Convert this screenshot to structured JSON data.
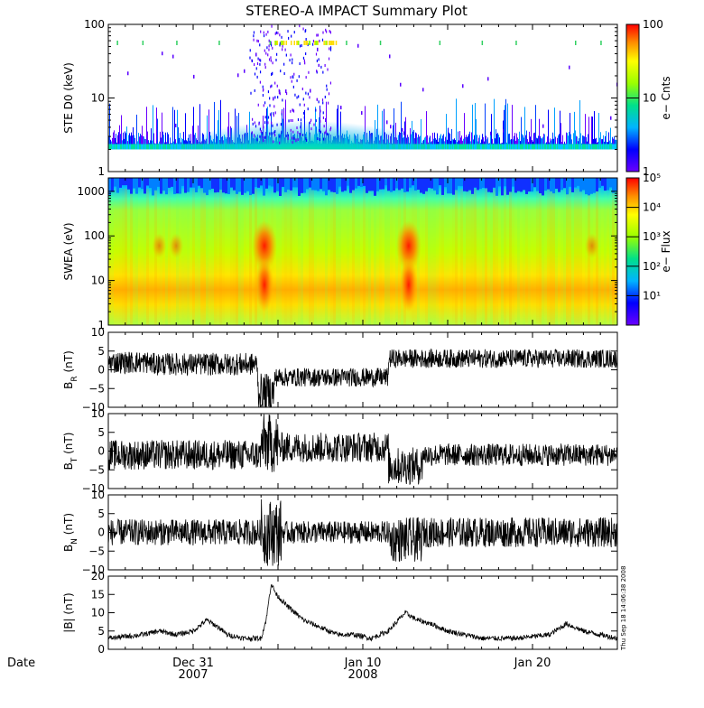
{
  "title": "STEREO-A IMPACT Summary Plot",
  "timestamp": "Thu Sep 18 14:06:38 2008",
  "date_label": "Date",
  "x_axis": {
    "start": "2007-12-26",
    "end": "2008-01-25",
    "ticks": [
      {
        "top": "Dec 31",
        "bottom": "2007",
        "day": 5
      },
      {
        "top": "Jan 10",
        "bottom": "2008",
        "day": 15
      },
      {
        "top": "Jan 20",
        "bottom": "",
        "day": 25
      }
    ]
  },
  "chart_data": [
    {
      "type": "heatmap",
      "name": "ste",
      "ylabel": "STE D0 (keV)",
      "yscale": "log",
      "ylim": [
        1,
        100
      ],
      "yticks": [
        "1",
        "10",
        "100"
      ],
      "colorbar": {
        "label": "e− Cnts",
        "ticks": [
          "1",
          "10",
          "100"
        ],
        "range": [
          1,
          100
        ]
      },
      "description_values": {
        "background_level": 2,
        "peak_day": 11.5,
        "peak_counts": 100
      }
    },
    {
      "type": "heatmap",
      "name": "swea",
      "ylabel": "SWEA (eV)",
      "yscale": "log",
      "ylim": [
        1,
        2000
      ],
      "yticks": [
        "1",
        "10",
        "100",
        "1000"
      ],
      "colorbar": {
        "label": "e− Flux",
        "ticks": [
          "10¹",
          "10²",
          "10³",
          "10⁴",
          "10⁵"
        ],
        "range": [
          1,
          100000
        ]
      },
      "description_values": {
        "enhancement_days": [
          9.2,
          17.7
        ],
        "core_energy_ev": 8
      }
    },
    {
      "type": "line",
      "name": "br",
      "ylabel": "B_R (nT)",
      "ylim": [
        -10,
        10
      ],
      "yticks": [
        "10",
        "5",
        "0",
        "−5",
        "−10"
      ],
      "segments": [
        {
          "from": 0,
          "to": 2.5,
          "mean": 2,
          "amp": 3
        },
        {
          "from": 2.5,
          "to": 8.8,
          "mean": 1.5,
          "amp": 3
        },
        {
          "from": 8.8,
          "to": 9.8,
          "mean": -6,
          "amp": 5
        },
        {
          "from": 9.8,
          "to": 16.5,
          "mean": -2,
          "amp": 2.5
        },
        {
          "from": 16.5,
          "to": 30,
          "mean": 3,
          "amp": 2.5
        }
      ]
    },
    {
      "type": "line",
      "name": "bt",
      "ylabel": "B_T (nT)",
      "ylim": [
        -10,
        10
      ],
      "yticks": [
        "10",
        "5",
        "0",
        "−5",
        "−10"
      ],
      "segments": [
        {
          "from": 0,
          "to": 9,
          "mean": -1,
          "amp": 4
        },
        {
          "from": 9,
          "to": 10,
          "mean": 2,
          "amp": 8
        },
        {
          "from": 10,
          "to": 16.5,
          "mean": 1,
          "amp": 4
        },
        {
          "from": 16.5,
          "to": 18.5,
          "mean": -4,
          "amp": 5
        },
        {
          "from": 18.5,
          "to": 30,
          "mean": -1,
          "amp": 3
        }
      ]
    },
    {
      "type": "line",
      "name": "bn",
      "ylabel": "B_N (nT)",
      "ylim": [
        -10,
        10
      ],
      "yticks": [
        "10",
        "5",
        "0",
        "−5",
        "−10"
      ],
      "segments": [
        {
          "from": 0,
          "to": 9,
          "mean": 0,
          "amp": 3.5
        },
        {
          "from": 9,
          "to": 10.2,
          "mean": 0,
          "amp": 9
        },
        {
          "from": 10.2,
          "to": 16.5,
          "mean": 0,
          "amp": 3
        },
        {
          "from": 16.5,
          "to": 18.5,
          "mean": -2,
          "amp": 6
        },
        {
          "from": 18.5,
          "to": 30,
          "mean": 0,
          "amp": 4
        }
      ]
    },
    {
      "type": "line",
      "name": "bmag",
      "ylabel": "|B| (nT)",
      "ylim": [
        0,
        20
      ],
      "yticks": [
        "20",
        "15",
        "10",
        "5",
        "0"
      ],
      "points": [
        [
          0,
          3
        ],
        [
          2,
          4
        ],
        [
          3,
          5
        ],
        [
          4,
          4
        ],
        [
          5,
          5
        ],
        [
          5.8,
          8
        ],
        [
          6.5,
          6
        ],
        [
          7,
          4
        ],
        [
          8,
          3
        ],
        [
          9,
          3
        ],
        [
          9.3,
          8
        ],
        [
          9.6,
          18
        ],
        [
          9.9,
          15
        ],
        [
          10.5,
          12
        ],
        [
          11.5,
          8
        ],
        [
          12.5,
          6
        ],
        [
          13.5,
          4
        ],
        [
          14.5,
          4
        ],
        [
          15.5,
          3
        ],
        [
          16.5,
          5
        ],
        [
          17.5,
          10
        ],
        [
          18.2,
          8
        ],
        [
          19,
          7
        ],
        [
          20,
          5
        ],
        [
          21,
          4
        ],
        [
          22,
          3
        ],
        [
          24,
          3
        ],
        [
          26,
          4
        ],
        [
          27,
          7
        ],
        [
          28,
          5
        ],
        [
          29,
          4
        ],
        [
          30,
          3
        ]
      ]
    }
  ]
}
